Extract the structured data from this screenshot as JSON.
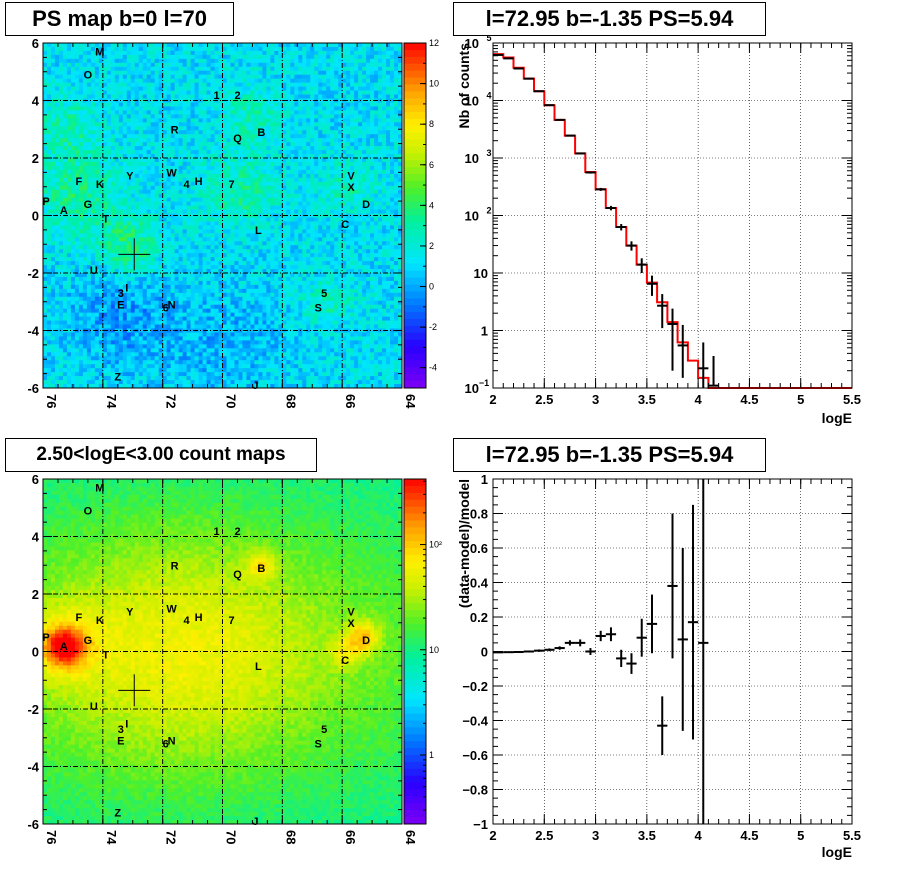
{
  "panels": {
    "ps_map": {
      "title": "PS map b=0 l=70"
    },
    "spectrum": {
      "title": "l=72.95 b=-1.35 PS=5.94"
    },
    "count_map": {
      "title": "2.50<logE<3.00 count maps"
    },
    "residual": {
      "title": "l=72.95 b=-1.35 PS=5.94"
    }
  },
  "chart_data": [
    {
      "type": "heatmap",
      "title": "PS map b=0 l=70",
      "xlim": [
        76,
        64
      ],
      "ylim": [
        -6,
        6
      ],
      "x_ticks": [
        "76",
        "74",
        "72",
        "70",
        "68",
        "66",
        "64"
      ],
      "y_ticks": [
        "-6",
        "-4",
        "-2",
        "0",
        "2",
        "4",
        "6"
      ],
      "colorbar": {
        "min": -5,
        "max": 12,
        "ticks": [
          "12",
          "10",
          "8",
          "6",
          "4",
          "2",
          "0",
          "-2",
          "-4"
        ]
      },
      "marker": {
        "l": 72.95,
        "b": -1.35
      },
      "grid": true,
      "labels": [
        {
          "t": "M",
          "l": 74.1,
          "b": 5.7
        },
        {
          "t": "O",
          "l": 74.5,
          "b": 4.9
        },
        {
          "t": "1",
          "l": 70.2,
          "b": 4.2
        },
        {
          "t": "2",
          "l": 69.5,
          "b": 4.2
        },
        {
          "t": "R",
          "l": 71.6,
          "b": 3.0
        },
        {
          "t": "Q",
          "l": 69.5,
          "b": 2.7
        },
        {
          "t": "B",
          "l": 68.7,
          "b": 2.9
        },
        {
          "t": "W",
          "l": 71.7,
          "b": 1.5
        },
        {
          "t": "4",
          "l": 71.2,
          "b": 1.1
        },
        {
          "t": "H",
          "l": 70.8,
          "b": 1.2
        },
        {
          "t": "7",
          "l": 69.7,
          "b": 1.1
        },
        {
          "t": "V",
          "l": 65.7,
          "b": 1.4
        },
        {
          "t": "X",
          "l": 65.7,
          "b": 1.0
        },
        {
          "t": "D",
          "l": 65.2,
          "b": 0.4
        },
        {
          "t": "Y",
          "l": 73.1,
          "b": 1.4
        },
        {
          "t": "F",
          "l": 74.8,
          "b": 1.2
        },
        {
          "t": "K",
          "l": 74.1,
          "b": 1.1
        },
        {
          "t": "G",
          "l": 74.5,
          "b": 0.4
        },
        {
          "t": "P",
          "l": 75.9,
          "b": 0.5
        },
        {
          "t": "A",
          "l": 75.3,
          "b": 0.2
        },
        {
          "t": "T",
          "l": 73.9,
          "b": -0.1
        },
        {
          "t": "C",
          "l": 65.9,
          "b": -0.3
        },
        {
          "t": "L",
          "l": 68.8,
          "b": -0.5
        },
        {
          "t": "U",
          "l": 74.3,
          "b": -1.9
        },
        {
          "t": "3",
          "l": 73.4,
          "b": -2.7
        },
        {
          "t": "I",
          "l": 73.2,
          "b": -2.5
        },
        {
          "t": "E",
          "l": 73.4,
          "b": -3.1
        },
        {
          "t": "6",
          "l": 71.9,
          "b": -3.2
        },
        {
          "t": "N",
          "l": 71.7,
          "b": -3.1
        },
        {
          "t": "5",
          "l": 66.6,
          "b": -2.7
        },
        {
          "t": "S",
          "l": 66.8,
          "b": -3.2
        },
        {
          "t": "Z",
          "l": 73.5,
          "b": -5.6
        },
        {
          "t": "J",
          "l": 68.9,
          "b": -5.9
        }
      ]
    },
    {
      "type": "line",
      "title": "l=72.95 b=-1.35 PS=5.94",
      "xlabel": "logE",
      "ylabel": "Nb of counts",
      "xlim": [
        2,
        5.5
      ],
      "ylim": [
        0.1,
        100000
      ],
      "yscale": "log",
      "x_ticks": [
        "2",
        "2.5",
        "3",
        "3.5",
        "4",
        "4.5",
        "5",
        "5.5"
      ],
      "y_ticks": [
        {
          "v": 100000,
          "base": "10",
          "exp": "5"
        },
        {
          "v": 10000,
          "base": "10",
          "exp": "4"
        },
        {
          "v": 1000,
          "base": "10",
          "exp": "3"
        },
        {
          "v": 100,
          "base": "10",
          "exp": "2"
        },
        {
          "v": 10,
          "base": "10",
          "exp": ""
        },
        {
          "v": 1,
          "base": "1",
          "exp": ""
        },
        {
          "v": 0.1,
          "base": "10",
          "exp": "−1"
        }
      ],
      "grid": true,
      "series": [
        {
          "kind": "errorbars",
          "color": "#000000",
          "points": [
            {
              "x": 2.05,
              "y": 62000,
              "elo": 500,
              "ehi": 500
            },
            {
              "x": 2.15,
              "y": 54000,
              "elo": 500,
              "ehi": 500
            },
            {
              "x": 2.25,
              "y": 36000,
              "elo": 400,
              "ehi": 400
            },
            {
              "x": 2.35,
              "y": 24000,
              "elo": 300,
              "ehi": 300
            },
            {
              "x": 2.45,
              "y": 14500,
              "elo": 200,
              "ehi": 200
            },
            {
              "x": 2.55,
              "y": 8300,
              "elo": 150,
              "ehi": 150
            },
            {
              "x": 2.65,
              "y": 4600,
              "elo": 100,
              "ehi": 100
            },
            {
              "x": 2.75,
              "y": 2450,
              "elo": 60,
              "ehi": 60
            },
            {
              "x": 2.85,
              "y": 1200,
              "elo": 40,
              "ehi": 40
            },
            {
              "x": 2.95,
              "y": 560,
              "elo": 25,
              "ehi": 25
            },
            {
              "x": 3.05,
              "y": 285,
              "elo": 17,
              "ehi": 17
            },
            {
              "x": 3.15,
              "y": 135,
              "elo": 12,
              "ehi": 12
            },
            {
              "x": 3.25,
              "y": 63,
              "elo": 8,
              "ehi": 8
            },
            {
              "x": 3.35,
              "y": 30,
              "elo": 5.5,
              "ehi": 5.5
            },
            {
              "x": 3.45,
              "y": 14,
              "elo": 4,
              "ehi": 4
            },
            {
              "x": 3.55,
              "y": 6.5,
              "elo": 2.5,
              "ehi": 2.5
            },
            {
              "x": 3.65,
              "y": 2.7,
              "elo": 1.6,
              "ehi": 1.6
            },
            {
              "x": 3.75,
              "y": 1.3,
              "elo": 1.1,
              "ehi": 1.1
            },
            {
              "x": 3.85,
              "y": 0.55,
              "elo": 0.4,
              "ehi": 0.7
            },
            {
              "x": 4.05,
              "y": 0.22,
              "elo": 0.12,
              "ehi": 0.4
            },
            {
              "x": 4.15,
              "y": 0.11,
              "elo": 0.0,
              "ehi": 0.25
            }
          ]
        },
        {
          "kind": "step",
          "color": "#ff0000",
          "edges": [
            2.0,
            2.1,
            2.2,
            2.3,
            2.4,
            2.5,
            2.6,
            2.7,
            2.8,
            2.9,
            3.0,
            3.1,
            3.2,
            3.3,
            3.4,
            3.5,
            3.6,
            3.7,
            3.8,
            3.9,
            4.0,
            4.1,
            4.2,
            4.3,
            4.4,
            4.5,
            4.6,
            5.5
          ],
          "values": [
            64000,
            56000,
            37000,
            24000,
            14500,
            8300,
            4600,
            2450,
            1200,
            570,
            285,
            135,
            63,
            30,
            14,
            6.8,
            3.1,
            1.4,
            0.62,
            0.3,
            0.15,
            0.1,
            0.1,
            0.1,
            0.1,
            0.1,
            0.1
          ]
        }
      ]
    },
    {
      "type": "heatmap",
      "title": "2.50<logE<3.00 count maps",
      "xlim": [
        76,
        64
      ],
      "ylim": [
        -6,
        6
      ],
      "x_ticks": [
        "76",
        "74",
        "72",
        "70",
        "68",
        "66",
        "64"
      ],
      "y_ticks": [
        "-6",
        "-4",
        "-2",
        "0",
        "2",
        "4",
        "6"
      ],
      "colorbar": {
        "scale": "log",
        "ticks": [
          "10²",
          "10",
          "1"
        ]
      },
      "marker": {
        "l": 72.95,
        "b": -1.35
      },
      "grid": true
    },
    {
      "type": "scatter",
      "title": "l=72.95 b=-1.35 PS=5.94",
      "xlabel": "logE",
      "ylabel": "(data-model)/model",
      "xlim": [
        2,
        5.5
      ],
      "ylim": [
        -1,
        1
      ],
      "x_ticks": [
        "2",
        "2.5",
        "3",
        "3.5",
        "4",
        "4.5",
        "5",
        "5.5"
      ],
      "y_ticks": [
        "1",
        "0.8",
        "0.6",
        "0.4",
        "0.2",
        "0",
        "−0.2",
        "−0.4",
        "−0.6",
        "−0.8",
        "−1"
      ],
      "grid": true,
      "series": [
        {
          "kind": "errorbars",
          "color": "#000000",
          "points": [
            {
              "x": 2.05,
              "y": -0.005,
              "e": 0.004
            },
            {
              "x": 2.15,
              "y": -0.004,
              "e": 0.004
            },
            {
              "x": 2.25,
              "y": -0.003,
              "e": 0.005
            },
            {
              "x": 2.35,
              "y": 0.0,
              "e": 0.006
            },
            {
              "x": 2.45,
              "y": 0.005,
              "e": 0.007
            },
            {
              "x": 2.55,
              "y": 0.01,
              "e": 0.008
            },
            {
              "x": 2.65,
              "y": 0.02,
              "e": 0.01
            },
            {
              "x": 2.75,
              "y": 0.05,
              "e": 0.015
            },
            {
              "x": 2.85,
              "y": 0.05,
              "e": 0.02
            },
            {
              "x": 2.95,
              "y": 0.0,
              "e": 0.02
            },
            {
              "x": 3.05,
              "y": 0.09,
              "e": 0.03
            },
            {
              "x": 3.15,
              "y": 0.1,
              "e": 0.04
            },
            {
              "x": 3.25,
              "y": -0.04,
              "e": 0.05
            },
            {
              "x": 3.35,
              "y": -0.07,
              "e": 0.06
            },
            {
              "x": 3.45,
              "y": 0.08,
              "e": 0.11
            },
            {
              "x": 3.55,
              "y": 0.16,
              "e": 0.17
            },
            {
              "x": 3.65,
              "y": -0.43,
              "e": 0.17
            },
            {
              "x": 3.75,
              "y": 0.38,
              "e": 0.42
            },
            {
              "x": 3.85,
              "y": 0.07,
              "e": 0.53
            },
            {
              "x": 3.95,
              "y": 0.17,
              "e": 0.68
            },
            {
              "x": 4.05,
              "y": 0.05,
              "e": 1.2
            }
          ]
        }
      ]
    }
  ]
}
